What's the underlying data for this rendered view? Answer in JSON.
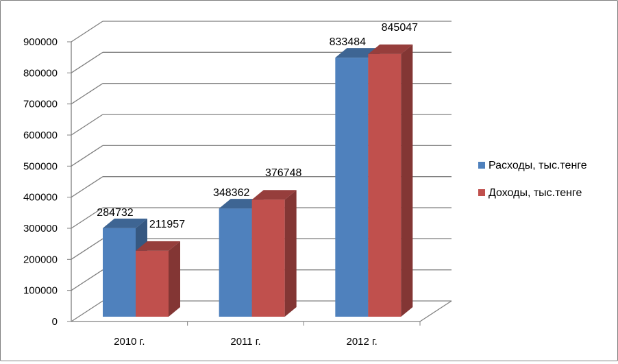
{
  "chart_data": {
    "type": "bar",
    "style": "3d-clustered-column",
    "categories": [
      "2010 г.",
      "2011 г.",
      "2012 г."
    ],
    "series": [
      {
        "name": "Расходы, тыс.тенге",
        "values": [
          284732,
          348362,
          833484
        ],
        "color": "#4f81bd"
      },
      {
        "name": "Доходы, тыс.тенге",
        "values": [
          211957,
          376748,
          845047
        ],
        "color": "#c0504d"
      }
    ],
    "y_ticks": [
      "0",
      "100000",
      "200000",
      "300000",
      "400000",
      "500000",
      "600000",
      "700000",
      "800000",
      "900000"
    ],
    "ylim": [
      0,
      900000
    ],
    "grid": true,
    "legend_position": "right"
  }
}
